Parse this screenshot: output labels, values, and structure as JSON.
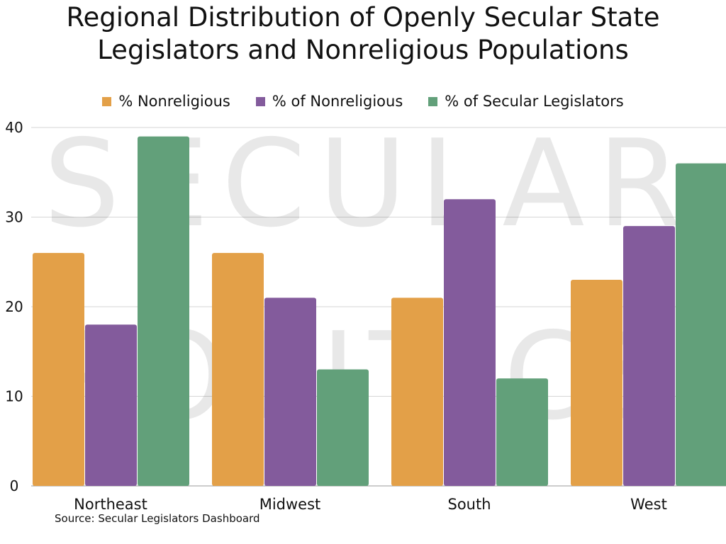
{
  "chart_data": {
    "type": "bar",
    "title_lines": [
      "Regional Distribution of Openly Secular State",
      "Legislators and Nonreligious Populations"
    ],
    "categories": [
      "Northeast",
      "Midwest",
      "South",
      "West"
    ],
    "series": [
      {
        "name": "% Nonreligious",
        "color": "#E3A048",
        "values": [
          26,
          26,
          21,
          23
        ]
      },
      {
        "name": "% of Nonreligious",
        "color": "#835B9C",
        "values": [
          18,
          21,
          32,
          29
        ]
      },
      {
        "name": "% of Secular Legislators",
        "color": "#62A07A",
        "values": [
          39,
          13,
          12,
          36
        ]
      }
    ],
    "ylim": [
      0,
      40
    ],
    "yticks": [
      0,
      10,
      20,
      30,
      40
    ],
    "xlabel": "",
    "ylabel": "",
    "grid": true,
    "legend_position": "top-center",
    "watermark": [
      "SECULAR",
      "POLITICS"
    ]
  },
  "source": "Source: Secular Legislators Dashboard"
}
